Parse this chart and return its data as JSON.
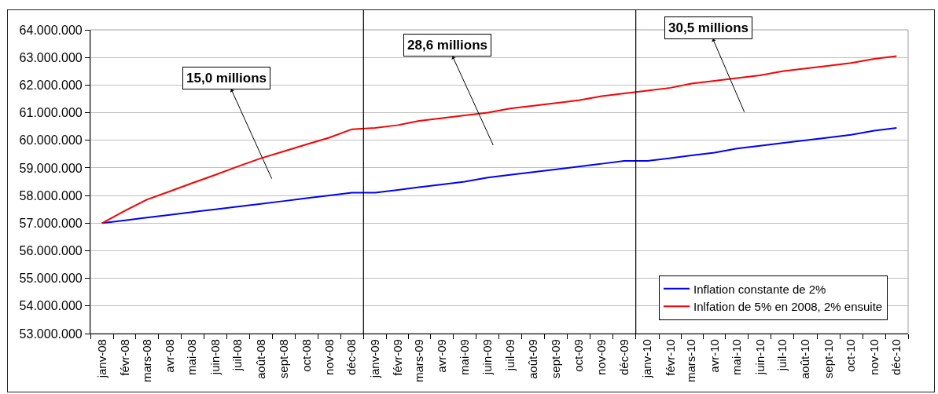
{
  "chart_data": {
    "type": "line",
    "x": [
      "2008-01",
      "2008-02",
      "2008-03",
      "2008-04",
      "2008-05",
      "2008-06",
      "2008-07",
      "2008-08",
      "2008-09",
      "2008-10",
      "2008-11",
      "2008-12",
      "2009-01",
      "2009-02",
      "2009-03",
      "2009-04",
      "2009-05",
      "2009-06",
      "2009-07",
      "2009-08",
      "2009-09",
      "2009-10",
      "2009-11",
      "2009-12",
      "2010-01",
      "2010-02",
      "2010-03",
      "2010-04",
      "2010-05",
      "2010-06",
      "2010-07",
      "2010-08",
      "2010-09",
      "2010-10",
      "2010-11",
      "2010-12"
    ],
    "series": [
      {
        "name": "Inflation constante de 2%",
        "color": "#0000ff",
        "values": [
          57000000,
          57100000,
          57200000,
          57300000,
          57400000,
          57500000,
          57600000,
          57700000,
          57800000,
          57900000,
          58000000,
          58100000,
          58100000,
          58200000,
          58300000,
          58400000,
          58500000,
          58650000,
          58750000,
          58850000,
          58950000,
          59050000,
          59150000,
          59250000,
          59250000,
          59350000,
          59450000,
          59550000,
          59700000,
          59800000,
          59900000,
          60000000,
          60100000,
          60200000,
          60350000,
          60450000
        ]
      },
      {
        "name": "Inlfation de 5% en 2008, 2% ensuite",
        "color": "#ff0000",
        "values": [
          57000000,
          57450000,
          57850000,
          58150000,
          58450000,
          58750000,
          59050000,
          59350000,
          59600000,
          59850000,
          60100000,
          60400000,
          60450000,
          60550000,
          60700000,
          60800000,
          60900000,
          61000000,
          61150000,
          61250000,
          61350000,
          61450000,
          61600000,
          61700000,
          61800000,
          61900000,
          62050000,
          62150000,
          62250000,
          62350000,
          62500000,
          62600000,
          62700000,
          62800000,
          62950000,
          63050000
        ]
      }
    ],
    "xlim": [
      "2007-12-16T12:00",
      "2010-12-16T12:00"
    ],
    "xticks": [
      {
        "value": "2008-01",
        "label": "janv-08"
      },
      {
        "value": "2008-02",
        "label": "févr-08"
      },
      {
        "value": "2008-03",
        "label": "mars-08"
      },
      {
        "value": "2008-04",
        "label": "avr-08"
      },
      {
        "value": "2008-05",
        "label": "mai-08"
      },
      {
        "value": "2008-06",
        "label": "juin-08"
      },
      {
        "value": "2008-07",
        "label": "juil-08"
      },
      {
        "value": "2008-08",
        "label": "août-08"
      },
      {
        "value": "2008-09",
        "label": "sept-08"
      },
      {
        "value": "2008-10",
        "label": "oct-08"
      },
      {
        "value": "2008-11",
        "label": "nov-08"
      },
      {
        "value": "2008-12",
        "label": "déc-08"
      },
      {
        "value": "2009-01",
        "label": "janv-09"
      },
      {
        "value": "2009-02",
        "label": "févr-09"
      },
      {
        "value": "2009-03",
        "label": "mars-09"
      },
      {
        "value": "2009-04",
        "label": "avr-09"
      },
      {
        "value": "2009-05",
        "label": "mai-09"
      },
      {
        "value": "2009-06",
        "label": "juin-09"
      },
      {
        "value": "2009-07",
        "label": "juil-09"
      },
      {
        "value": "2009-08",
        "label": "août-09"
      },
      {
        "value": "2009-09",
        "label": "sept-09"
      },
      {
        "value": "2009-10",
        "label": "oct-09"
      },
      {
        "value": "2009-11",
        "label": "nov-09"
      },
      {
        "value": "2009-12",
        "label": "déc-09"
      },
      {
        "value": "2010-01",
        "label": "janv-10"
      },
      {
        "value": "2010-02",
        "label": "févr-10"
      },
      {
        "value": "2010-03",
        "label": "mars-10"
      },
      {
        "value": "2010-04",
        "label": "avr-10"
      },
      {
        "value": "2010-05",
        "label": "mai-10"
      },
      {
        "value": "2010-06",
        "label": "juin-10"
      },
      {
        "value": "2010-07",
        "label": "juil-10"
      },
      {
        "value": "2010-08",
        "label": "août-10"
      },
      {
        "value": "2010-09",
        "label": "sept-10"
      },
      {
        "value": "2010-10",
        "label": "oct-10"
      },
      {
        "value": "2010-11",
        "label": "nov-10"
      },
      {
        "value": "2010-12",
        "label": "déc-10"
      }
    ],
    "ylim": [
      53000000,
      64000000
    ],
    "yticks": [
      {
        "value": 53000000,
        "label": "53.000.000"
      },
      {
        "value": 54000000,
        "label": "54.000.000"
      },
      {
        "value": 55000000,
        "label": "55.000.000"
      },
      {
        "value": 56000000,
        "label": "56.000.000"
      },
      {
        "value": 57000000,
        "label": "57.000.000"
      },
      {
        "value": 58000000,
        "label": "58.000.000"
      },
      {
        "value": 59000000,
        "label": "59.000.000"
      },
      {
        "value": 60000000,
        "label": "60.000.000"
      },
      {
        "value": 61000000,
        "label": "61.000.000"
      },
      {
        "value": 62000000,
        "label": "62.000.000"
      },
      {
        "value": 63000000,
        "label": "63.000.000"
      },
      {
        "value": 64000000,
        "label": "64.000.000"
      }
    ],
    "grid": "y",
    "legend": "bottom right",
    "marker": "none",
    "ref_lines": [
      {
        "axis": "x",
        "value": "2008-12-16T12:00",
        "color": "#000000"
      },
      {
        "axis": "x",
        "value": "2009-12-16T12:00",
        "color": "#000000"
      }
    ],
    "annotations": [
      "15,0 millions",
      "28,6 millions",
      "30,5 millions"
    ]
  }
}
